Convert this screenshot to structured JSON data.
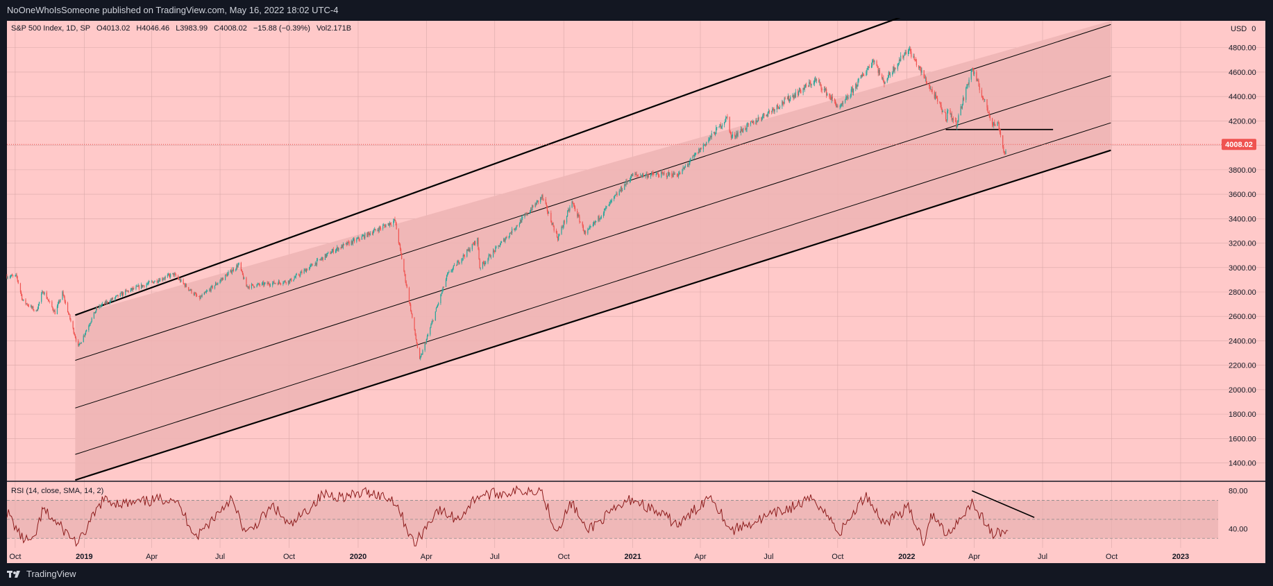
{
  "header": {
    "published": "NoOneWhoIsSomeone published on TradingView.com, May 16, 2022 18:02 UTC-4"
  },
  "footer": {
    "brand": "TradingView"
  },
  "colors": {
    "page_bg": "#131722",
    "pane_bg": "#ffc9c9",
    "channel_fill": "#eeb5b5",
    "up_candle": "#26a69a",
    "down_candle": "#ef5350",
    "rsi_line": "#8b1a1a",
    "price_badge": "#ef5350",
    "lines": "#000000"
  },
  "legend": {
    "symbol": "S&P 500 Index, 1D, SP",
    "open": "O4013.02",
    "high": "H4046.46",
    "low": "L3983.99",
    "close": "C4008.02",
    "change": "−15.88 (−0.39%)",
    "volume": "Vol2.171B"
  },
  "rsi_legend": "RSI (14, close, SMA, 14, 2)",
  "currency": "USD",
  "currency_zero": "0",
  "last_price_label": "4008.02",
  "chart_data": [
    {
      "type": "candlestick",
      "title": "S&P 500 Index, 1D, SP",
      "y_axis": {
        "ticks": [
          1400,
          1600,
          1800,
          2000,
          2200,
          2400,
          2600,
          2800,
          3000,
          3200,
          3400,
          3600,
          3800,
          4000,
          4200,
          4400,
          4600,
          4800
        ],
        "tick_labels": [
          "1400.00",
          "1600.00",
          "1800.00",
          "2000.00",
          "2200.00",
          "2400.00",
          "2600.00",
          "2800.00",
          "3000.00",
          "3200.00",
          "3400.00",
          "3600.00",
          "3800.00",
          "4000.00",
          "4200.00",
          "4400.00",
          "4600.00",
          "4800.00"
        ],
        "range": [
          1250,
          5020
        ]
      },
      "x_axis": {
        "range": [
          "2018-09-20",
          "2023-02-20"
        ],
        "ticks": [
          {
            "date": "2018-10-01",
            "label": "Oct",
            "bold": false
          },
          {
            "date": "2019-01-01",
            "label": "2019",
            "bold": true
          },
          {
            "date": "2019-04-01",
            "label": "Apr",
            "bold": false
          },
          {
            "date": "2019-07-01",
            "label": "Jul",
            "bold": false
          },
          {
            "date": "2019-10-01",
            "label": "Oct",
            "bold": false
          },
          {
            "date": "2020-01-01",
            "label": "2020",
            "bold": true
          },
          {
            "date": "2020-04-01",
            "label": "Apr",
            "bold": false
          },
          {
            "date": "2020-07-01",
            "label": "Jul",
            "bold": false
          },
          {
            "date": "2020-10-01",
            "label": "Oct",
            "bold": false
          },
          {
            "date": "2021-01-01",
            "label": "2021",
            "bold": true
          },
          {
            "date": "2021-04-01",
            "label": "Apr",
            "bold": false
          },
          {
            "date": "2021-07-01",
            "label": "Jul",
            "bold": false
          },
          {
            "date": "2021-10-01",
            "label": "Oct",
            "bold": false
          },
          {
            "date": "2022-01-01",
            "label": "2022",
            "bold": true
          },
          {
            "date": "2022-04-01",
            "label": "Apr",
            "bold": false
          },
          {
            "date": "2022-07-01",
            "label": "Jul",
            "bold": false
          },
          {
            "date": "2022-10-01",
            "label": "Oct",
            "bold": false
          },
          {
            "date": "2023-01-01",
            "label": "2023",
            "bold": true
          }
        ]
      },
      "series": [
        {
          "kind": "close_path",
          "points": [
            [
              "2018-09-20",
              2930
            ],
            [
              "2018-10-03",
              2925
            ],
            [
              "2018-10-11",
              2730
            ],
            [
              "2018-10-29",
              2640
            ],
            [
              "2018-11-07",
              2810
            ],
            [
              "2018-11-23",
              2630
            ],
            [
              "2018-12-03",
              2790
            ],
            [
              "2018-12-24",
              2350
            ],
            [
              "2019-01-18",
              2670
            ],
            [
              "2019-02-25",
              2800
            ],
            [
              "2019-04-30",
              2945
            ],
            [
              "2019-06-03",
              2745
            ],
            [
              "2019-07-26",
              3025
            ],
            [
              "2019-08-05",
              2845
            ],
            [
              "2019-10-02",
              2890
            ],
            [
              "2019-11-29",
              3140
            ],
            [
              "2019-12-31",
              3230
            ],
            [
              "2020-02-19",
              3385
            ],
            [
              "2020-03-23",
              2240
            ],
            [
              "2020-04-29",
              2940
            ],
            [
              "2020-06-08",
              3230
            ],
            [
              "2020-06-11",
              3000
            ],
            [
              "2020-09-02",
              3580
            ],
            [
              "2020-09-23",
              3240
            ],
            [
              "2020-10-12",
              3535
            ],
            [
              "2020-10-30",
              3270
            ],
            [
              "2020-12-31",
              3755
            ],
            [
              "2021-03-04",
              3765
            ],
            [
              "2021-05-07",
              4230
            ],
            [
              "2021-05-12",
              4065
            ],
            [
              "2021-09-02",
              4535
            ],
            [
              "2021-10-04",
              4300
            ],
            [
              "2021-11-18",
              4705
            ],
            [
              "2021-12-01",
              4515
            ],
            [
              "2022-01-03",
              4795
            ],
            [
              "2022-02-23",
              4225
            ],
            [
              "2022-02-24",
              4290
            ],
            [
              "2022-03-08",
              4170
            ],
            [
              "2022-03-29",
              4630
            ],
            [
              "2022-04-12",
              4400
            ],
            [
              "2022-04-26",
              4175
            ],
            [
              "2022-05-03",
              4175
            ],
            [
              "2022-05-11",
              3935
            ],
            [
              "2022-05-12",
              3930
            ],
            [
              "2022-05-16",
              4008
            ]
          ]
        }
      ],
      "last_close": 4008.02,
      "drawings": {
        "channel_top": [
          [
            "2018-12-20",
            2610
          ],
          [
            "2022-05-31",
            5400
          ]
        ],
        "channel_bottom": [
          [
            "2018-12-20",
            1260
          ],
          [
            "2022-09-30",
            3960
          ]
        ],
        "channel_mid_lines": [
          [
            [
              "2018-12-20",
              2240
            ],
            [
              "2022-09-30",
              4990
            ]
          ],
          [
            [
              "2018-12-20",
              1850
            ],
            [
              "2022-09-30",
              4570
            ]
          ],
          [
            [
              "2018-12-20",
              1470
            ],
            [
              "2022-09-30",
              4185
            ]
          ]
        ],
        "horizontal_level": [
          [
            "2022-02-22",
            4130
          ],
          [
            "2022-07-15",
            4130
          ]
        ],
        "channel_shade_range": [
          "2018-12-20",
          "2022-09-30"
        ]
      }
    },
    {
      "type": "line",
      "title": "RSI (14, close, SMA, 14, 2)",
      "y_axis": {
        "range": [
          20,
          90
        ],
        "ticks": [
          40,
          80
        ],
        "tick_labels": [
          "40.00",
          "80.00"
        ]
      },
      "bands": {
        "upper": 70,
        "middle": 50,
        "lower": 30
      },
      "series": [
        {
          "points": [
            [
              "2018-09-20",
              58
            ],
            [
              "2018-10-10",
              30
            ],
            [
              "2018-10-25",
              26
            ],
            [
              "2018-11-07",
              60
            ],
            [
              "2018-12-24",
              24
            ],
            [
              "2019-01-25",
              70
            ],
            [
              "2019-03-01",
              66
            ],
            [
              "2019-04-30",
              73
            ],
            [
              "2019-05-31",
              32
            ],
            [
              "2019-07-15",
              72
            ],
            [
              "2019-08-05",
              34
            ],
            [
              "2019-09-10",
              64
            ],
            [
              "2019-10-02",
              42
            ],
            [
              "2019-11-15",
              76
            ],
            [
              "2019-12-20",
              74
            ],
            [
              "2020-01-16",
              79
            ],
            [
              "2020-02-19",
              70
            ],
            [
              "2020-03-16",
              23
            ],
            [
              "2020-04-15",
              60
            ],
            [
              "2020-05-13",
              50
            ],
            [
              "2020-06-08",
              75
            ],
            [
              "2020-08-31",
              82
            ],
            [
              "2020-09-21",
              38
            ],
            [
              "2020-10-12",
              68
            ],
            [
              "2020-10-30",
              38
            ],
            [
              "2020-12-31",
              72
            ],
            [
              "2021-03-04",
              44
            ],
            [
              "2021-04-15",
              76
            ],
            [
              "2021-05-12",
              38
            ],
            [
              "2021-08-31",
              72
            ],
            [
              "2021-10-04",
              36
            ],
            [
              "2021-11-08",
              76
            ],
            [
              "2021-12-01",
              46
            ],
            [
              "2022-01-03",
              62
            ],
            [
              "2022-01-24",
              26
            ],
            [
              "2022-02-02",
              56
            ],
            [
              "2022-02-24",
              34
            ],
            [
              "2022-03-29",
              68
            ],
            [
              "2022-04-26",
              34
            ],
            [
              "2022-05-16",
              38
            ]
          ]
        }
      ],
      "drawings": {
        "trend_line": [
          [
            "2022-03-29",
            80
          ],
          [
            "2022-06-20",
            52
          ]
        ]
      }
    }
  ]
}
